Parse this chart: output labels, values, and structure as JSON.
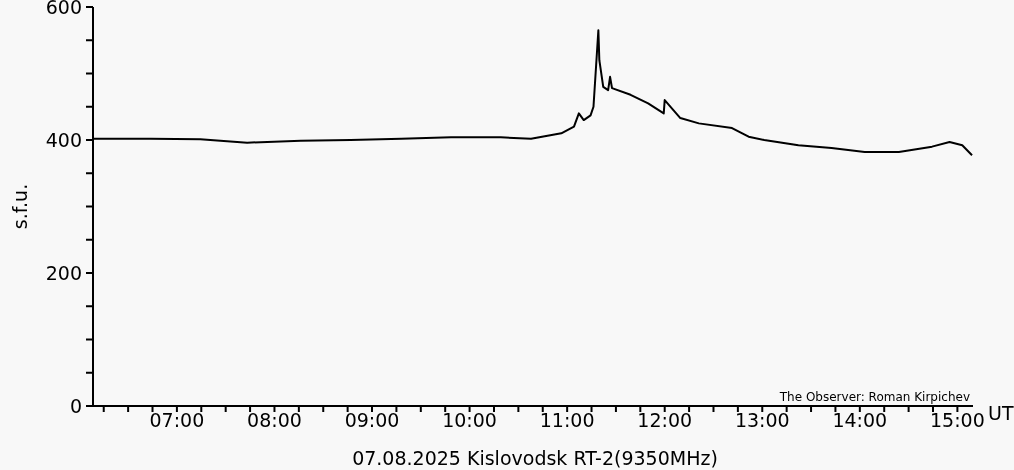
{
  "chart_data": {
    "type": "line",
    "title": "07.08.2025 Kislovodsk RT-2(9350MHz)",
    "xlabel": "UT",
    "ylabel": "s.f.u.",
    "annotations": [
      "The Observer: Roman Kirpichev"
    ],
    "x": [
      6.14,
      6.73,
      7.24,
      7.72,
      8.27,
      8.78,
      9.3,
      9.81,
      10.32,
      10.63,
      10.94,
      11.07,
      11.12,
      11.17,
      11.24,
      11.27,
      11.32,
      11.33,
      11.37,
      11.42,
      11.44,
      11.46,
      11.65,
      11.83,
      11.99,
      12.0,
      12.16,
      12.35,
      12.69,
      12.86,
      13.02,
      13.37,
      13.71,
      14.05,
      14.4,
      14.74,
      14.92,
      15.05,
      15.15
    ],
    "series": [
      {
        "color": "#000000",
        "values": [
          402,
          402,
          401,
          396,
          399,
          400,
          402,
          404,
          404,
          402,
          410,
          420,
          440,
          430,
          437,
          450,
          565,
          520,
          480,
          475,
          495,
          478,
          468,
          455,
          440,
          460,
          433,
          425,
          418,
          405,
          400,
          392,
          388,
          382,
          382,
          390,
          397,
          392,
          377
        ]
      }
    ],
    "xlim": [
      6.14,
      15.16
    ],
    "xticks": [
      {
        "value": 6.25,
        "label": null
      },
      {
        "value": 6.5,
        "label": null
      },
      {
        "value": 6.75,
        "label": null
      },
      {
        "value": 7,
        "label": "07:00"
      },
      {
        "value": 7.25,
        "label": null
      },
      {
        "value": 7.5,
        "label": null
      },
      {
        "value": 7.75,
        "label": null
      },
      {
        "value": 8,
        "label": "08:00"
      },
      {
        "value": 8.25,
        "label": null
      },
      {
        "value": 8.5,
        "label": null
      },
      {
        "value": 8.75,
        "label": null
      },
      {
        "value": 9,
        "label": "09:00"
      },
      {
        "value": 9.25,
        "label": null
      },
      {
        "value": 9.5,
        "label": null
      },
      {
        "value": 9.75,
        "label": null
      },
      {
        "value": 10,
        "label": "10:00"
      },
      {
        "value": 10.25,
        "label": null
      },
      {
        "value": 10.5,
        "label": null
      },
      {
        "value": 10.75,
        "label": null
      },
      {
        "value": 11,
        "label": "11:00"
      },
      {
        "value": 11.25,
        "label": null
      },
      {
        "value": 11.5,
        "label": null
      },
      {
        "value": 11.75,
        "label": null
      },
      {
        "value": 12,
        "label": "12:00"
      },
      {
        "value": 12.25,
        "label": null
      },
      {
        "value": 12.5,
        "label": null
      },
      {
        "value": 12.75,
        "label": null
      },
      {
        "value": 13,
        "label": "13:00"
      },
      {
        "value": 13.25,
        "label": null
      },
      {
        "value": 13.5,
        "label": null
      },
      {
        "value": 13.75,
        "label": null
      },
      {
        "value": 14,
        "label": "14:00"
      },
      {
        "value": 14.25,
        "label": null
      },
      {
        "value": 14.5,
        "label": null
      },
      {
        "value": 14.75,
        "label": null
      },
      {
        "value": 15,
        "label": "15:00"
      }
    ],
    "ylim": [
      0,
      600
    ],
    "yticks": [
      0,
      {
        "value": 50,
        "label": null
      },
      {
        "value": 100,
        "label": null
      },
      {
        "value": 150,
        "label": null
      },
      200,
      {
        "value": 250,
        "label": null
      },
      {
        "value": 300,
        "label": null
      },
      {
        "value": 350,
        "label": null
      },
      400,
      {
        "value": 450,
        "label": null
      },
      {
        "value": 500,
        "label": null
      },
      {
        "value": 550,
        "label": null
      },
      600
    ],
    "grid": false,
    "legend": false,
    "marker": "none",
    "line_style": "solid"
  }
}
